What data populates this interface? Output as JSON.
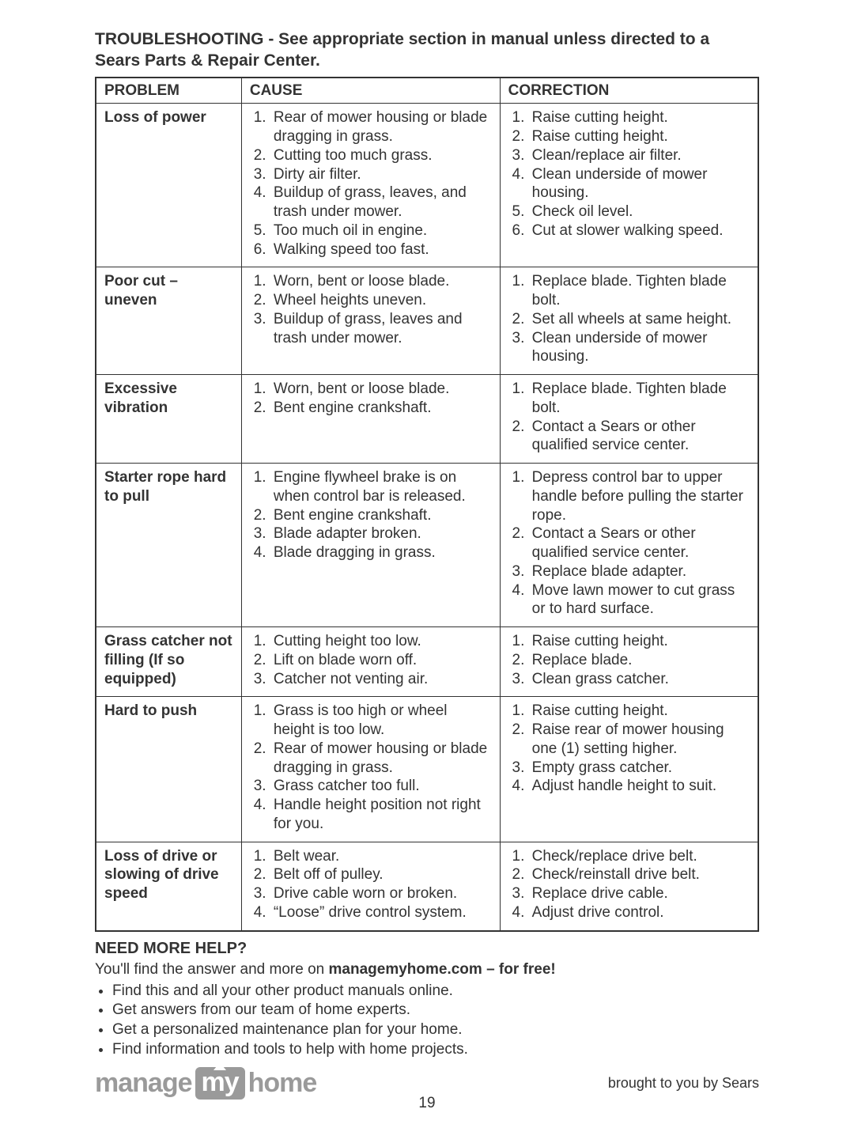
{
  "title": "TROUBLESHOOTING - See appropriate section in manual unless directed to a Sears Parts & Repair Center.",
  "headers": {
    "problem": "PROBLEM",
    "cause": "CAUSE",
    "correction": "CORRECTION"
  },
  "rows": [
    {
      "problem": "Loss of power",
      "causes": [
        "Rear of mower housing or blade dragging in grass.",
        "Cutting too much grass.",
        "Dirty air filter.",
        "Buildup of grass, leaves, and trash under mower.",
        "Too much oil in engine.",
        "Walking speed too fast."
      ],
      "corrections": [
        "Raise cutting height.",
        "Raise cutting height.",
        "Clean/replace air filter.",
        "Clean underside of mower housing.",
        "Check oil level.",
        "Cut at slower walking speed."
      ]
    },
    {
      "problem": "Poor cut – uneven",
      "causes": [
        "Worn, bent or loose blade.",
        "Wheel heights uneven.",
        "Buildup of grass, leaves and trash under mower."
      ],
      "corrections": [
        "Replace blade. Tighten blade bolt.",
        "Set all wheels at same height.",
        "Clean underside of mower housing."
      ]
    },
    {
      "problem": "Excessive vibration",
      "causes": [
        "Worn, bent or loose blade.",
        "Bent engine crankshaft."
      ],
      "corrections": [
        "Replace blade. Tighten blade bolt.",
        "Contact a Sears or other qualified service center."
      ]
    },
    {
      "problem": "Starter rope hard to pull",
      "causes": [
        "Engine flywheel brake is on when control bar is released.",
        "Bent engine crankshaft.",
        "Blade adapter broken.",
        "Blade dragging in grass."
      ],
      "corrections": [
        "Depress control bar to upper handle before pulling the starter rope.",
        "Contact a Sears or other qualified service center.",
        "Replace blade adapter.",
        "Move lawn mower to cut grass or to hard surface."
      ]
    },
    {
      "problem": "Grass catcher not filling (If so equipped)",
      "causes": [
        "Cutting height too low.",
        "Lift on blade worn off.",
        "Catcher not venting air."
      ],
      "corrections": [
        "Raise cutting height.",
        "Replace blade.",
        "Clean grass catcher."
      ]
    },
    {
      "problem": "Hard to push",
      "causes": [
        "Grass is too high or wheel height is too low.",
        "Rear of mower housing or blade dragging in grass.",
        "Grass catcher too full.",
        "Handle height position not right for you."
      ],
      "corrections": [
        "Raise cutting height.",
        "Raise rear of mower housing one (1) setting higher.",
        "Empty grass catcher.",
        "Adjust handle height to suit."
      ]
    },
    {
      "problem": "Loss of drive or slowing of drive speed",
      "causes": [
        "Belt wear.",
        "Belt off of pulley.",
        "Drive cable worn or broken.",
        "“Loose” drive control system."
      ],
      "corrections": [
        "Check/replace drive belt.",
        "Check/reinstall drive belt.",
        "Replace drive cable.",
        "Adjust drive control."
      ]
    }
  ],
  "help": {
    "heading": "NEED MORE HELP?",
    "intro_pre": "You'll find the answer and more on ",
    "intro_bold": "managemyhome.com – for free!",
    "bullets": [
      "Find this and all your other product manuals online.",
      "Get answers from our team of home experts.",
      "Get a personalized maintenance plan for your home.",
      "Find information and tools to help with home projects."
    ]
  },
  "logo": {
    "pre": "manage",
    "box": "my",
    "post": "home"
  },
  "tagline": "brought to you by Sears",
  "page_number": "19",
  "colors": {
    "text": "#333333",
    "border": "#333333",
    "logo_gray": "#9a9a9a",
    "background": "#ffffff"
  },
  "column_widths_pct": {
    "problem": 22,
    "cause": 39,
    "correction": 39
  },
  "font_sizes_pt": {
    "title": 16,
    "body": 14,
    "logo": 26
  }
}
